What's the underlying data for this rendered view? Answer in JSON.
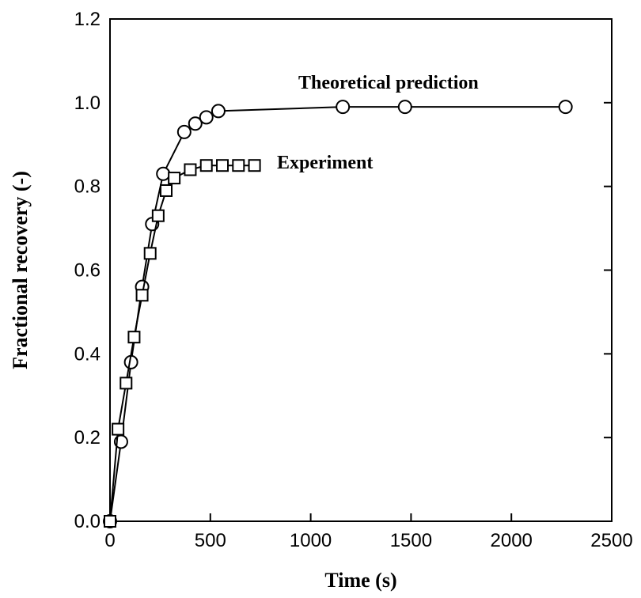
{
  "chart_data": {
    "type": "line",
    "xlabel": "Time (s)",
    "ylabel": "Fractional recovery (-)",
    "xlim": [
      0,
      2500
    ],
    "ylim": [
      0,
      1.2
    ],
    "xticks": [
      0,
      500,
      1000,
      1500,
      2000,
      2500
    ],
    "yticks": [
      0.0,
      0.2,
      0.4,
      0.6,
      0.8,
      1.0,
      1.2
    ],
    "xtick_labels": [
      "0",
      "500",
      "1000",
      "1500",
      "2000",
      "2500"
    ],
    "ytick_labels": [
      "0.0",
      "0.2",
      "0.4",
      "0.6",
      "0.8",
      "1.0",
      "1.2"
    ],
    "grid": false,
    "series": [
      {
        "name": "Theoretical prediction",
        "marker": "circle",
        "x": [
          0,
          55,
          105,
          160,
          210,
          265,
          370,
          425,
          480,
          540,
          1160,
          1470,
          2270
        ],
        "y": [
          0,
          0.19,
          0.38,
          0.56,
          0.71,
          0.83,
          0.93,
          0.95,
          0.965,
          0.98,
          0.99,
          0.99,
          0.99
        ]
      },
      {
        "name": "Experiment",
        "marker": "square",
        "x": [
          0,
          40,
          80,
          120,
          160,
          200,
          240,
          280,
          320,
          400,
          480,
          560,
          640,
          720
        ],
        "y": [
          0,
          0.22,
          0.33,
          0.44,
          0.54,
          0.64,
          0.73,
          0.79,
          0.82,
          0.84,
          0.85,
          0.85,
          0.85,
          0.85
        ]
      }
    ]
  }
}
